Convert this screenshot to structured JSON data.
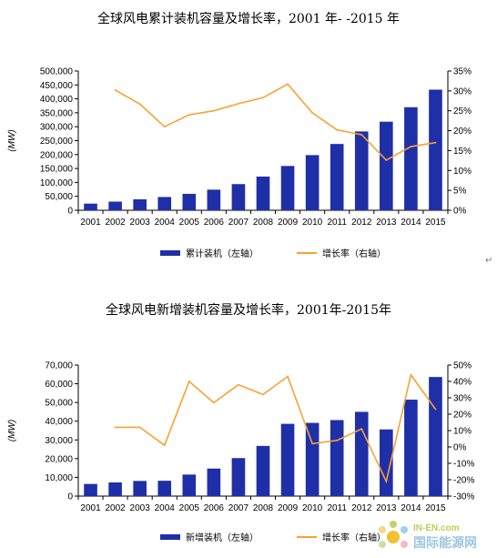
{
  "charts": [
    {
      "title": "全球风电累计装机容量及增长率，2001 年- -2015 年",
      "chart_data": {
        "type": "bar",
        "categories": [
          "2001",
          "2002",
          "2003",
          "2004",
          "2005",
          "2006",
          "2007",
          "2008",
          "2009",
          "2010",
          "2011",
          "2012",
          "2013",
          "2014",
          "2015"
        ],
        "series": [
          {
            "name": "累计装机（左轴）",
            "type": "bar",
            "axis": "left",
            "color": "#1f2fa8",
            "values": [
              23900,
              31100,
              39400,
              47600,
              59000,
              74000,
              94000,
              121000,
              159000,
              198000,
              238000,
              283000,
              318000,
              370000,
              433000
            ]
          },
          {
            "name": "增长率（右轴）",
            "type": "line",
            "axis": "right",
            "color": "#f7a234",
            "values": [
              null,
              30.2,
              26.7,
              21.0,
              24.0,
              25.0,
              26.8,
              28.3,
              31.7,
              24.5,
              20.2,
              19.0,
              12.6,
              16.0,
              17.0
            ]
          }
        ],
        "yleft": {
          "label": "(MW)",
          "lim": [
            0,
            500000
          ],
          "ticks": [
            "0",
            "50,000",
            "100,000",
            "150,000",
            "200,000",
            "250,000",
            "300,000",
            "350,000",
            "400,000",
            "450,000",
            "500,000"
          ]
        },
        "yright": {
          "lim": [
            0,
            35
          ],
          "ticks": [
            "0%",
            "5%",
            "10%",
            "15%",
            "20%",
            "25%",
            "30%",
            "35%"
          ]
        },
        "legend": "bottom-center",
        "grid": false
      }
    },
    {
      "title": "全球风电新增装机容量及增长率，2001年-2015年",
      "chart_data": {
        "type": "bar",
        "categories": [
          "2001",
          "2002",
          "2003",
          "2004",
          "2005",
          "2006",
          "2007",
          "2008",
          "2009",
          "2010",
          "2011",
          "2012",
          "2013",
          "2014",
          "2015"
        ],
        "series": [
          {
            "name": "新增装机（左轴）",
            "type": "bar",
            "axis": "left",
            "color": "#1f2fa8",
            "values": [
              6500,
              7300,
              8100,
              8200,
              11500,
              14700,
              20300,
              26800,
              38600,
              39100,
              40600,
              45000,
              35600,
              51500,
              63600
            ]
          },
          {
            "name": "增长率（右轴）",
            "type": "line",
            "axis": "right",
            "color": "#f7a234",
            "values": [
              null,
              12,
              12,
              1,
              40,
              27,
              38,
              32,
              43,
              2,
              4,
              11,
              -21,
              44,
              23
            ]
          }
        ],
        "yleft": {
          "label": "(MW)",
          "lim": [
            0,
            70000
          ],
          "ticks": [
            "0",
            "10,000",
            "20,000",
            "30,000",
            "40,000",
            "50,000",
            "60,000",
            "70,000"
          ]
        },
        "yright": {
          "lim": [
            -30,
            50
          ],
          "ticks": [
            "-30%",
            "-20%",
            "-10%",
            "0%",
            "10%",
            "20%",
            "30%",
            "40%",
            "50%"
          ]
        },
        "legend": "bottom-center",
        "grid": false
      }
    }
  ],
  "edit_mark": "↵",
  "watermark": {
    "line1": "IN-EN.com",
    "line2": "国际能源网"
  }
}
